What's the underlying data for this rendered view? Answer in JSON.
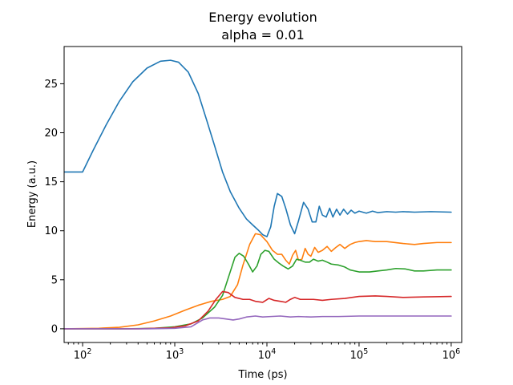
{
  "chart_data": {
    "type": "line",
    "title": "Energy evolution",
    "subtitle": "alpha = 0.01",
    "xlabel": "Time (ps)",
    "ylabel": "Energy (a.u.)",
    "xscale": "log",
    "xlim": [
      63,
      1300000
    ],
    "ylim": [
      -1.4,
      28.8
    ],
    "x_ticks": [
      {
        "value": 100,
        "base": "10",
        "exp": "2"
      },
      {
        "value": 1000,
        "base": "10",
        "exp": "3"
      },
      {
        "value": 10000,
        "base": "10",
        "exp": "4"
      },
      {
        "value": 100000,
        "base": "10",
        "exp": "5"
      },
      {
        "value": 1000000,
        "base": "10",
        "exp": "6"
      }
    ],
    "y_ticks": [
      {
        "value": 0,
        "label": "0"
      },
      {
        "value": 5,
        "label": "5"
      },
      {
        "value": 10,
        "label": "10"
      },
      {
        "value": 15,
        "label": "15"
      },
      {
        "value": 20,
        "label": "20"
      },
      {
        "value": 25,
        "label": "25"
      }
    ],
    "grid": false,
    "legend": "none",
    "series": [
      {
        "color": "#1f77b4",
        "points": [
          [
            63,
            16.0
          ],
          [
            100,
            16.0
          ],
          [
            130,
            18.2
          ],
          [
            180,
            20.8
          ],
          [
            250,
            23.2
          ],
          [
            350,
            25.2
          ],
          [
            500,
            26.6
          ],
          [
            700,
            27.3
          ],
          [
            900,
            27.4
          ],
          [
            1100,
            27.2
          ],
          [
            1400,
            26.2
          ],
          [
            1800,
            24.0
          ],
          [
            2200,
            21.4
          ],
          [
            2700,
            18.7
          ],
          [
            3300,
            16.0
          ],
          [
            4000,
            14.0
          ],
          [
            5000,
            12.3
          ],
          [
            6000,
            11.2
          ],
          [
            7000,
            10.6
          ],
          [
            8000,
            10.1
          ],
          [
            9000,
            9.6
          ],
          [
            10000,
            9.4
          ],
          [
            11000,
            10.4
          ],
          [
            12000,
            12.5
          ],
          [
            13000,
            13.8
          ],
          [
            14500,
            13.5
          ],
          [
            16000,
            12.3
          ],
          [
            18000,
            10.6
          ],
          [
            20000,
            9.7
          ],
          [
            22000,
            11.0
          ],
          [
            25000,
            12.9
          ],
          [
            28000,
            12.2
          ],
          [
            31000,
            10.9
          ],
          [
            34000,
            10.9
          ],
          [
            37000,
            12.5
          ],
          [
            40000,
            11.6
          ],
          [
            44000,
            11.4
          ],
          [
            48000,
            12.3
          ],
          [
            52000,
            11.4
          ],
          [
            57000,
            12.2
          ],
          [
            62000,
            11.6
          ],
          [
            68000,
            12.2
          ],
          [
            75000,
            11.7
          ],
          [
            82000,
            12.1
          ],
          [
            90000,
            11.8
          ],
          [
            100000,
            12.0
          ],
          [
            120000,
            11.8
          ],
          [
            140000,
            12.0
          ],
          [
            160000,
            11.85
          ],
          [
            200000,
            11.95
          ],
          [
            250000,
            11.9
          ],
          [
            300000,
            11.95
          ],
          [
            400000,
            11.9
          ],
          [
            600000,
            11.95
          ],
          [
            1000000,
            11.9
          ]
        ]
      },
      {
        "color": "#ff7f0e",
        "points": [
          [
            63,
            0.0
          ],
          [
            150,
            0.05
          ],
          [
            250,
            0.15
          ],
          [
            400,
            0.4
          ],
          [
            600,
            0.8
          ],
          [
            900,
            1.3
          ],
          [
            1300,
            1.9
          ],
          [
            1800,
            2.4
          ],
          [
            2500,
            2.8
          ],
          [
            3300,
            3.0
          ],
          [
            4000,
            3.3
          ],
          [
            4800,
            4.5
          ],
          [
            5500,
            6.5
          ],
          [
            6500,
            8.6
          ],
          [
            7500,
            9.7
          ],
          [
            8500,
            9.6
          ],
          [
            10000,
            8.9
          ],
          [
            11500,
            8.0
          ],
          [
            13000,
            7.6
          ],
          [
            14500,
            7.6
          ],
          [
            16000,
            7.0
          ],
          [
            17500,
            6.6
          ],
          [
            19000,
            7.5
          ],
          [
            20500,
            8.0
          ],
          [
            22000,
            7.0
          ],
          [
            24000,
            7.1
          ],
          [
            26000,
            8.2
          ],
          [
            28000,
            7.6
          ],
          [
            30000,
            7.4
          ],
          [
            33000,
            8.3
          ],
          [
            36000,
            7.8
          ],
          [
            40000,
            8.0
          ],
          [
            45000,
            8.4
          ],
          [
            50000,
            7.9
          ],
          [
            56000,
            8.3
          ],
          [
            62000,
            8.6
          ],
          [
            70000,
            8.2
          ],
          [
            80000,
            8.6
          ],
          [
            90000,
            8.8
          ],
          [
            100000,
            8.9
          ],
          [
            120000,
            9.0
          ],
          [
            150000,
            8.9
          ],
          [
            200000,
            8.9
          ],
          [
            300000,
            8.7
          ],
          [
            400000,
            8.6
          ],
          [
            500000,
            8.7
          ],
          [
            700000,
            8.8
          ],
          [
            1000000,
            8.8
          ]
        ]
      },
      {
        "color": "#2ca02c",
        "points": [
          [
            63,
            0.0
          ],
          [
            300,
            0.0
          ],
          [
            600,
            0.05
          ],
          [
            1000,
            0.2
          ],
          [
            1500,
            0.5
          ],
          [
            2000,
            1.1
          ],
          [
            2700,
            2.2
          ],
          [
            3300,
            3.4
          ],
          [
            3900,
            5.5
          ],
          [
            4500,
            7.3
          ],
          [
            5000,
            7.7
          ],
          [
            5600,
            7.4
          ],
          [
            6300,
            6.6
          ],
          [
            7000,
            5.8
          ],
          [
            7800,
            6.4
          ],
          [
            8600,
            7.6
          ],
          [
            9500,
            8.0
          ],
          [
            10500,
            7.9
          ],
          [
            12000,
            7.1
          ],
          [
            13500,
            6.7
          ],
          [
            15000,
            6.4
          ],
          [
            17000,
            6.1
          ],
          [
            19000,
            6.4
          ],
          [
            21000,
            7.1
          ],
          [
            23000,
            7.0
          ],
          [
            26000,
            6.8
          ],
          [
            29000,
            6.8
          ],
          [
            32000,
            7.1
          ],
          [
            36000,
            6.9
          ],
          [
            40000,
            7.0
          ],
          [
            45000,
            6.8
          ],
          [
            50000,
            6.6
          ],
          [
            60000,
            6.5
          ],
          [
            70000,
            6.3
          ],
          [
            80000,
            6.0
          ],
          [
            100000,
            5.8
          ],
          [
            130000,
            5.8
          ],
          [
            160000,
            5.9
          ],
          [
            200000,
            6.0
          ],
          [
            250000,
            6.15
          ],
          [
            320000,
            6.1
          ],
          [
            400000,
            5.9
          ],
          [
            500000,
            5.9
          ],
          [
            700000,
            6.0
          ],
          [
            1000000,
            6.0
          ]
        ]
      },
      {
        "color": "#d62728",
        "points": [
          [
            63,
            0.0
          ],
          [
            400,
            0.0
          ],
          [
            900,
            0.1
          ],
          [
            1300,
            0.3
          ],
          [
            1800,
            0.8
          ],
          [
            2300,
            1.8
          ],
          [
            2800,
            3.0
          ],
          [
            3300,
            3.8
          ],
          [
            3800,
            3.7
          ],
          [
            4500,
            3.2
          ],
          [
            5500,
            3.0
          ],
          [
            6500,
            3.0
          ],
          [
            7500,
            2.8
          ],
          [
            9000,
            2.7
          ],
          [
            10500,
            3.1
          ],
          [
            12000,
            2.9
          ],
          [
            14000,
            2.8
          ],
          [
            16000,
            2.7
          ],
          [
            18000,
            3.0
          ],
          [
            20000,
            3.2
          ],
          [
            23000,
            3.0
          ],
          [
            27000,
            3.0
          ],
          [
            32000,
            3.0
          ],
          [
            40000,
            2.9
          ],
          [
            50000,
            3.0
          ],
          [
            70000,
            3.1
          ],
          [
            100000,
            3.3
          ],
          [
            150000,
            3.35
          ],
          [
            200000,
            3.3
          ],
          [
            300000,
            3.2
          ],
          [
            500000,
            3.25
          ],
          [
            1000000,
            3.3
          ]
        ]
      },
      {
        "color": "#9467bd",
        "points": [
          [
            63,
            0.0
          ],
          [
            500,
            0.0
          ],
          [
            1000,
            0.05
          ],
          [
            1500,
            0.2
          ],
          [
            2000,
            0.9
          ],
          [
            2400,
            1.1
          ],
          [
            3000,
            1.1
          ],
          [
            3600,
            1.0
          ],
          [
            4300,
            0.9
          ],
          [
            5000,
            1.0
          ],
          [
            6000,
            1.2
          ],
          [
            7500,
            1.3
          ],
          [
            9000,
            1.2
          ],
          [
            11000,
            1.25
          ],
          [
            14000,
            1.3
          ],
          [
            18000,
            1.2
          ],
          [
            22000,
            1.25
          ],
          [
            30000,
            1.2
          ],
          [
            40000,
            1.25
          ],
          [
            60000,
            1.25
          ],
          [
            100000,
            1.3
          ],
          [
            200000,
            1.3
          ],
          [
            400000,
            1.3
          ],
          [
            1000000,
            1.3
          ]
        ]
      }
    ]
  }
}
